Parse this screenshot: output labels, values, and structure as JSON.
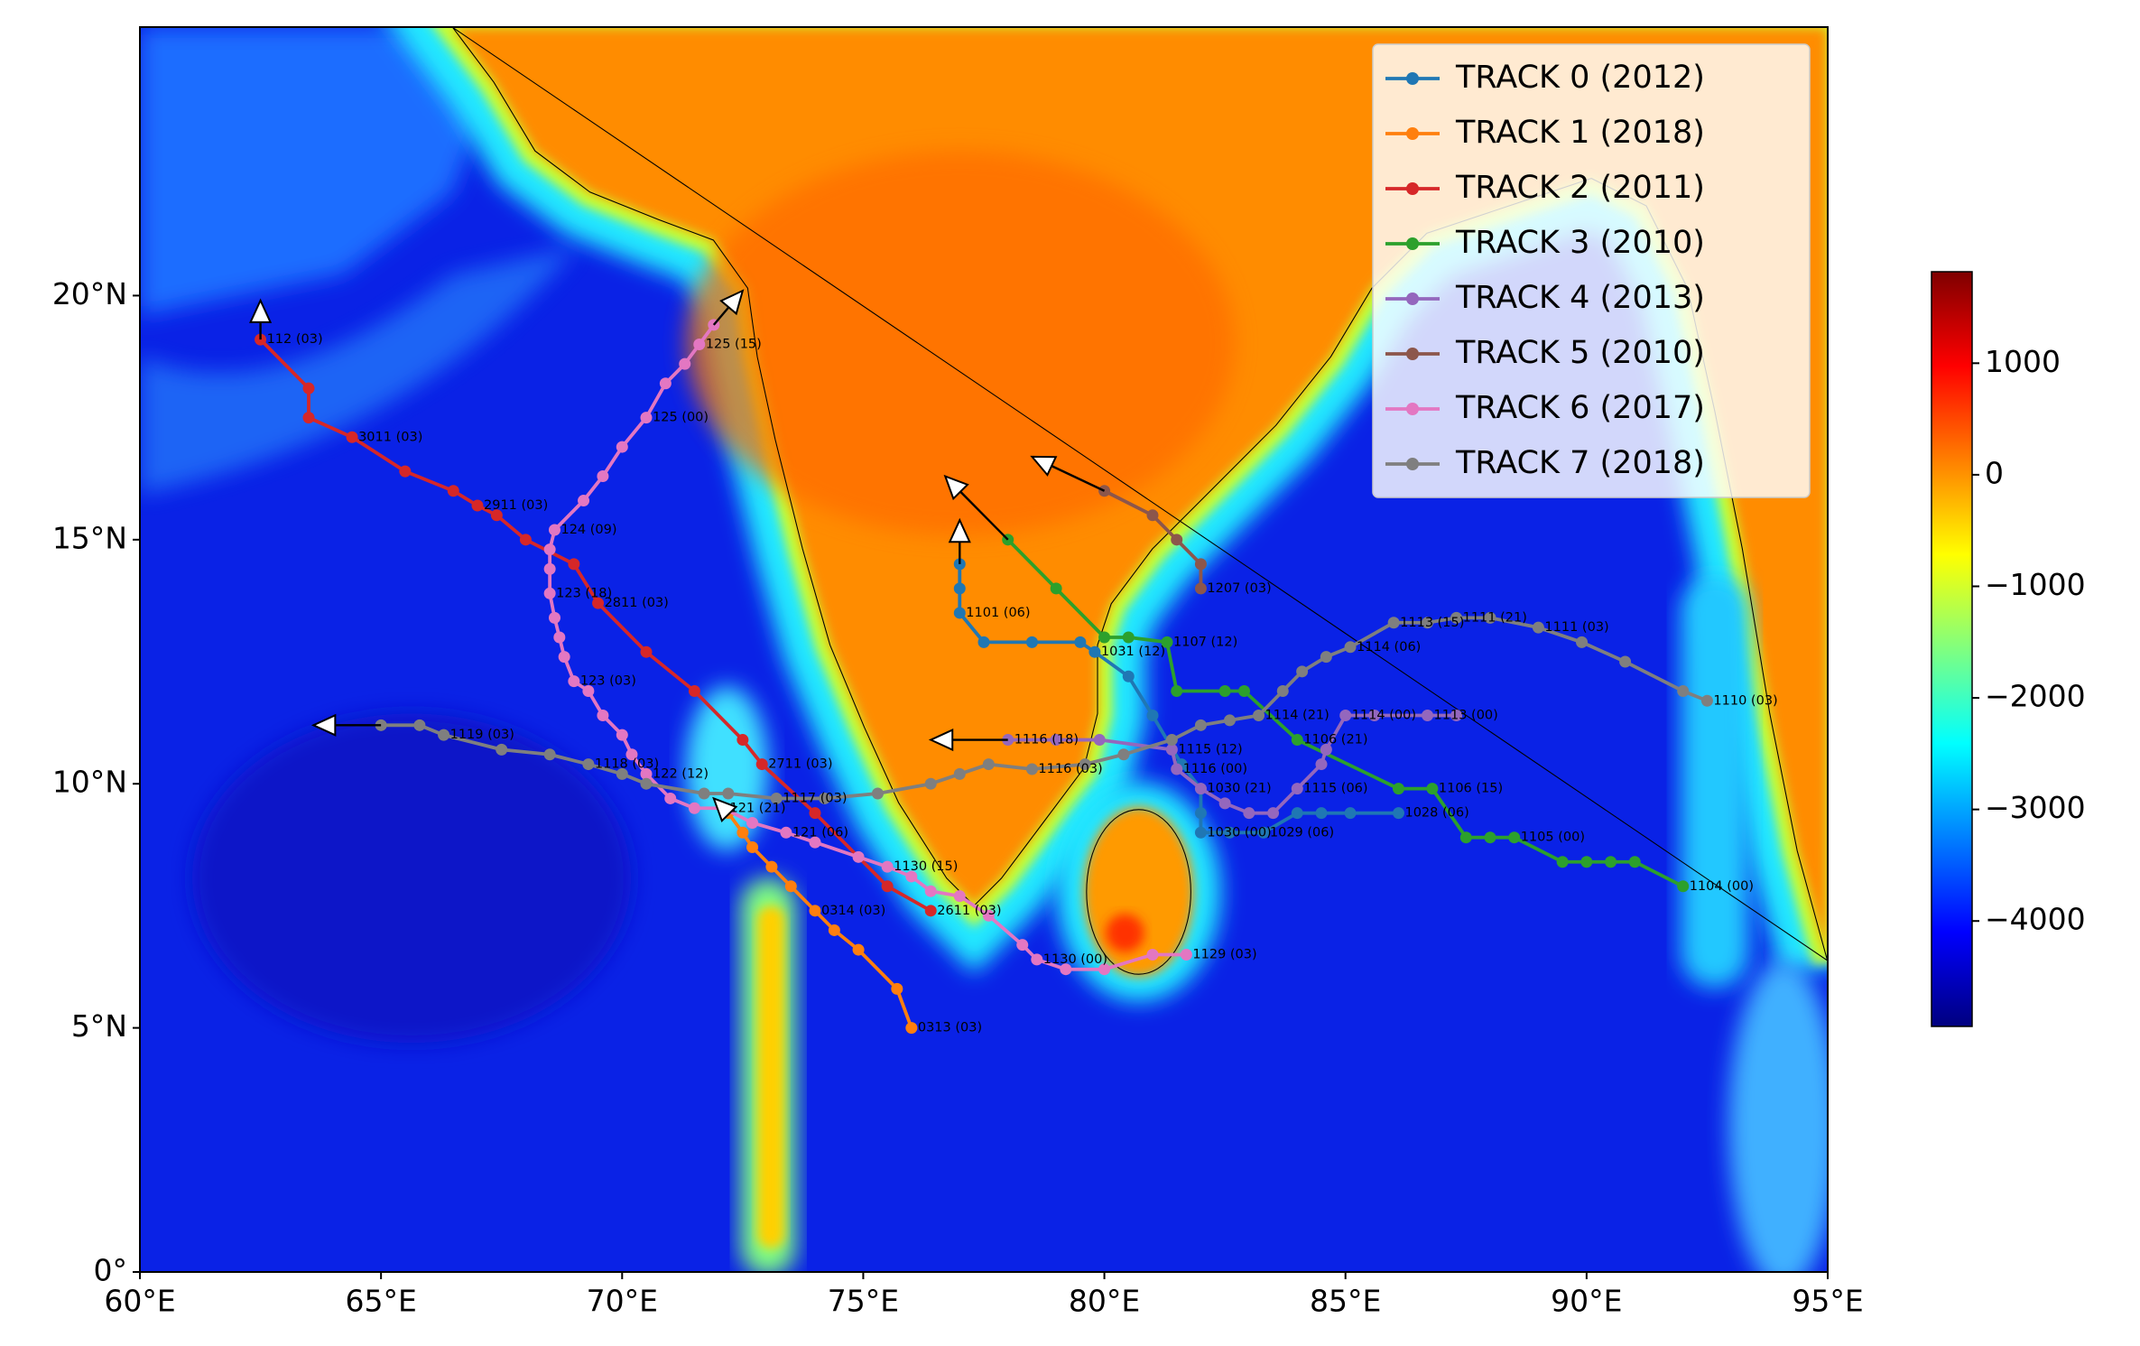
{
  "chart_data": {
    "type": "map",
    "xlim": [
      60,
      95
    ],
    "ylim": [
      0,
      25.5
    ],
    "xticks": [
      {
        "value": 60,
        "label": "60°E"
      },
      {
        "value": 65,
        "label": "65°E"
      },
      {
        "value": 70,
        "label": "70°E"
      },
      {
        "value": 75,
        "label": "75°E"
      },
      {
        "value": 80,
        "label": "80°E"
      },
      {
        "value": 85,
        "label": "85°E"
      },
      {
        "value": 90,
        "label": "90°E"
      },
      {
        "value": 95,
        "label": "95°E"
      }
    ],
    "yticks": [
      {
        "value": 0,
        "label": "0°"
      },
      {
        "value": 5,
        "label": "5°N"
      },
      {
        "value": 10,
        "label": "10°N"
      },
      {
        "value": 15,
        "label": "15°N"
      },
      {
        "value": 20,
        "label": "20°N"
      }
    ],
    "legend": "upper right",
    "series": [
      {
        "name": "TRACK 0 (2012)",
        "color": "#1f77b4",
        "lon": [
          86.1,
          85.1,
          84.5,
          84.0,
          83.3,
          82.6,
          82.0,
          82.0,
          82.0,
          81.6,
          81.0,
          80.5,
          79.8,
          79.5,
          78.5,
          77.5,
          77.0,
          77.0,
          77.0
        ],
        "lat": [
          9.4,
          9.4,
          9.4,
          9.4,
          9.0,
          9.0,
          9.0,
          9.4,
          9.9,
          10.4,
          11.4,
          12.2,
          12.7,
          12.9,
          12.9,
          12.9,
          13.5,
          14.0,
          14.5
        ],
        "labels": [
          "1028 (06)",
          null,
          null,
          null,
          "1029 (06)",
          null,
          "1030 (00)",
          null,
          "1030 (21)",
          null,
          null,
          null,
          "1031 (12)",
          null,
          null,
          null,
          "1101 (06)",
          null,
          null
        ],
        "arrow": [
          77.0,
          15.4
        ]
      },
      {
        "name": "TRACK 1 (2018)",
        "color": "#ff7f0e",
        "lon": [
          76.0,
          75.7,
          74.9,
          74.4,
          74.0,
          73.5,
          73.1,
          72.7,
          72.5,
          72.2
        ],
        "lat": [
          5.0,
          5.8,
          6.6,
          7.0,
          7.4,
          7.9,
          8.3,
          8.7,
          9.0,
          9.4
        ],
        "labels": [
          "0313 (03)",
          null,
          null,
          null,
          "0314 (03)",
          null,
          null,
          null,
          null,
          null
        ],
        "arrow": [
          71.9,
          9.7
        ]
      },
      {
        "name": "TRACK 2 (2011)",
        "color": "#d62728",
        "lon": [
          76.4,
          75.5,
          74.0,
          72.9,
          72.5,
          71.5,
          70.5,
          69.5,
          69.0,
          68.0,
          67.4,
          67.0,
          66.5,
          65.5,
          64.4,
          63.5,
          63.5,
          62.5
        ],
        "lat": [
          7.4,
          7.9,
          9.4,
          10.4,
          10.9,
          11.9,
          12.7,
          13.7,
          14.5,
          15.0,
          15.5,
          15.7,
          16.0,
          16.4,
          17.1,
          17.5,
          18.1,
          19.1
        ],
        "labels": [
          "2611 (03)",
          null,
          null,
          "2711 (03)",
          null,
          null,
          null,
          "2811 (03)",
          null,
          null,
          null,
          "2911 (03)",
          null,
          null,
          "3011 (03)",
          null,
          null,
          "112 (03)"
        ],
        "arrow": [
          62.5,
          19.9
        ]
      },
      {
        "name": "TRACK 3 (2010)",
        "color": "#2ca02c",
        "lon": [
          92.0,
          91.0,
          90.5,
          90.0,
          89.5,
          88.5,
          88.0,
          87.5,
          86.8,
          86.1,
          84.0,
          82.9,
          82.5,
          81.5,
          81.3,
          80.5,
          80.0,
          79.0,
          78.0
        ],
        "lat": [
          7.9,
          8.4,
          8.4,
          8.4,
          8.4,
          8.9,
          8.9,
          8.9,
          9.9,
          9.9,
          10.9,
          11.9,
          11.9,
          11.9,
          12.9,
          13.0,
          13.0,
          14.0,
          15.0
        ],
        "labels": [
          "1104 (00)",
          null,
          null,
          null,
          null,
          "1105 (00)",
          null,
          null,
          "1106 (15)",
          null,
          "1106 (21)",
          null,
          null,
          null,
          "1107 (12)",
          null,
          null,
          null,
          null
        ],
        "arrow": [
          76.7,
          16.3
        ]
      },
      {
        "name": "TRACK 4 (2013)",
        "color": "#9467bd",
        "lon": [
          87.3,
          86.7,
          85.6,
          85.0,
          84.6,
          84.5,
          84.0,
          83.5,
          83.0,
          82.5,
          82.0,
          81.5,
          81.4,
          79.9,
          79.0,
          78.0
        ],
        "lat": [
          11.4,
          11.4,
          11.4,
          11.4,
          10.7,
          10.4,
          9.9,
          9.4,
          9.4,
          9.6,
          9.9,
          10.3,
          10.7,
          10.9,
          10.9,
          10.9
        ],
        "labels": [
          null,
          "1113 (00)",
          null,
          "1114 (00)",
          null,
          null,
          "1115 (06)",
          null,
          null,
          null,
          null,
          "1116 (00)",
          "1115 (12)",
          null,
          null,
          "1116 (18)"
        ],
        "arrow": [
          76.4,
          10.9
        ]
      },
      {
        "name": "TRACK 5 (2010)",
        "color": "#8c564b",
        "lon": [
          82.0,
          82.0,
          81.5,
          81.0,
          80.0
        ],
        "lat": [
          14.0,
          14.5,
          15.0,
          15.5,
          16.0
        ],
        "labels": [
          "1207 (03)",
          null,
          null,
          null,
          null
        ],
        "arrow": [
          78.5,
          16.7
        ]
      },
      {
        "name": "TRACK 6 (2017)",
        "color": "#e377c2",
        "lon": [
          81.7,
          81.0,
          80.0,
          79.2,
          78.6,
          78.3,
          77.6,
          77.0,
          76.4,
          76.0,
          75.5,
          74.9,
          74.0,
          73.4,
          72.7,
          72.1,
          71.5,
          71.0,
          70.5,
          70.2,
          70.0,
          69.6,
          69.3,
          69.0,
          68.8,
          68.7,
          68.6,
          68.5,
          68.5,
          68.5,
          68.6,
          69.2,
          69.6,
          70.0,
          70.5,
          70.9,
          71.3,
          71.6,
          71.9
        ],
        "lat": [
          6.5,
          6.5,
          6.2,
          6.2,
          6.4,
          6.7,
          7.3,
          7.7,
          7.8,
          8.1,
          8.3,
          8.5,
          8.8,
          9.0,
          9.2,
          9.5,
          9.5,
          9.7,
          10.2,
          10.6,
          11.0,
          11.4,
          11.9,
          12.1,
          12.6,
          13.0,
          13.4,
          13.9,
          14.4,
          14.8,
          15.2,
          15.8,
          16.3,
          16.9,
          17.5,
          18.2,
          18.6,
          19.0,
          19.4
        ],
        "labels": [
          "1129 (03)",
          null,
          null,
          null,
          "1130 (00)",
          null,
          null,
          null,
          null,
          null,
          "1130 (15)",
          null,
          null,
          "121 (06)",
          null,
          "121 (21)",
          null,
          null,
          "122 (12)",
          null,
          null,
          null,
          null,
          "123 (03)",
          null,
          null,
          null,
          "123 (18)",
          null,
          null,
          "124 (09)",
          null,
          null,
          null,
          "125 (00)",
          null,
          null,
          "125 (15)",
          null
        ],
        "arrow": [
          72.5,
          20.1
        ]
      },
      {
        "name": "TRACK 7 (2018)",
        "color": "#7f7f7f",
        "lon": [
          92.5,
          92.0,
          90.8,
          89.9,
          89.0,
          88.0,
          87.3,
          86.7,
          86.0,
          85.1,
          84.6,
          84.1,
          83.7,
          83.2,
          82.6,
          82.0,
          81.4,
          80.4,
          79.6,
          78.5,
          77.6,
          77.0,
          76.4,
          75.3,
          74.2,
          73.2,
          72.2,
          71.7,
          70.5,
          70.0,
          69.3,
          68.5,
          67.5,
          66.3,
          65.8,
          65.0
        ],
        "lat": [
          11.7,
          11.9,
          12.5,
          12.9,
          13.2,
          13.4,
          13.4,
          13.3,
          13.3,
          12.8,
          12.6,
          12.3,
          11.9,
          11.4,
          11.3,
          11.2,
          10.9,
          10.6,
          10.4,
          10.3,
          10.4,
          10.2,
          10.0,
          9.8,
          9.7,
          9.7,
          9.8,
          9.8,
          10.0,
          10.2,
          10.4,
          10.6,
          10.7,
          11.0,
          11.2,
          11.2
        ],
        "labels": [
          "1110 (03)",
          null,
          null,
          null,
          "1111 (03)",
          null,
          "1111 (21)",
          null,
          "1113 (15)",
          "1114 (06)",
          null,
          null,
          null,
          "1114 (21)",
          null,
          null,
          null,
          null,
          null,
          "1116 (03)",
          null,
          null,
          null,
          null,
          null,
          "1117 (03)",
          null,
          null,
          null,
          null,
          "1118 (03)",
          null,
          null,
          "1119 (03)",
          null,
          null
        ],
        "arrow": [
          63.6,
          11.2
        ]
      }
    ],
    "colorbar": {
      "lim": [
        -4945,
        1820
      ],
      "ticks": [
        {
          "value": 1000,
          "label": "1000"
        },
        {
          "value": 0,
          "label": "0"
        },
        {
          "value": -1000,
          "label": "−1000"
        },
        {
          "value": -2000,
          "label": "−2000"
        },
        {
          "value": -3000,
          "label": "−3000"
        },
        {
          "value": -4000,
          "label": "−4000"
        }
      ]
    }
  }
}
